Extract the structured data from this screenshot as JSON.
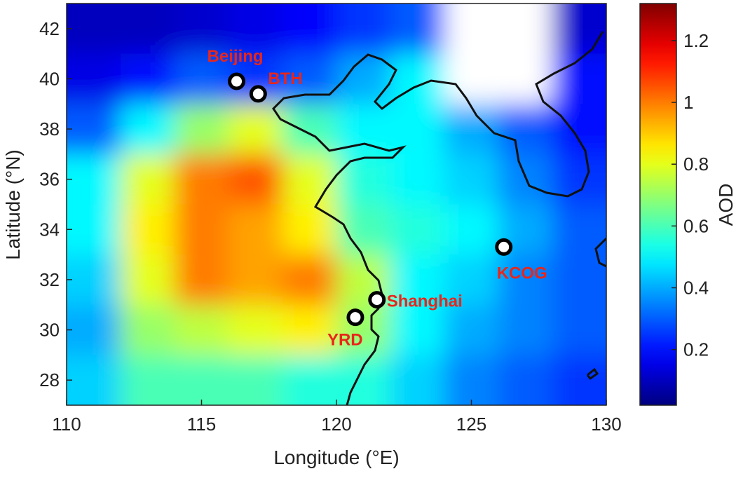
{
  "chart_data": {
    "type": "contour-map",
    "xlabel": "Longitude (°E)",
    "ylabel": "Latitude (°N)",
    "colorbar_label": "AOD",
    "xlim": [
      110,
      130
    ],
    "ylim": [
      27,
      43
    ],
    "xticks": [
      110,
      115,
      120,
      125,
      130
    ],
    "yticks": [
      28,
      30,
      32,
      34,
      36,
      38,
      40,
      42
    ],
    "clim": [
      0.02,
      1.32
    ],
    "cticks": [
      0.2,
      0.4,
      0.6,
      0.8,
      1,
      1.2
    ],
    "colormap": "jet",
    "field": {
      "lon": [
        111,
        113,
        115,
        117,
        119,
        121,
        123,
        125,
        127,
        129
      ],
      "lat": [
        42,
        40,
        38,
        36,
        34,
        32,
        30,
        28
      ],
      "values": [
        [
          0.1,
          0.1,
          0.12,
          0.15,
          0.18,
          0.25,
          0.3,
          null,
          null,
          0.12
        ],
        [
          0.15,
          0.2,
          0.3,
          0.25,
          0.3,
          0.4,
          0.5,
          null,
          null,
          0.2
        ],
        [
          0.3,
          0.5,
          0.7,
          0.8,
          0.6,
          0.5,
          0.5,
          0.4,
          0.3,
          0.2
        ],
        [
          0.5,
          0.8,
          1.0,
          1.05,
          0.8,
          0.55,
          0.5,
          0.45,
          0.35,
          0.25
        ],
        [
          0.5,
          0.85,
          1.0,
          0.95,
          0.85,
          0.6,
          0.55,
          0.5,
          0.4,
          0.3
        ],
        [
          0.45,
          0.8,
          1.0,
          0.95,
          1.0,
          0.75,
          0.5,
          0.45,
          0.35,
          0.3
        ],
        [
          0.4,
          0.7,
          0.75,
          0.8,
          0.85,
          0.7,
          0.5,
          0.4,
          0.35,
          0.3
        ],
        [
          0.45,
          0.6,
          0.6,
          0.6,
          0.55,
          0.55,
          0.45,
          0.35,
          0.3,
          0.25
        ]
      ]
    },
    "sites": [
      {
        "name": "Beijing",
        "lon": 116.3,
        "lat": 39.9
      },
      {
        "name": "BTH",
        "lon": 117.1,
        "lat": 39.4
      },
      {
        "name": "Shanghai",
        "lon": 121.5,
        "lat": 31.2
      },
      {
        "name": "YRD",
        "lon": 120.7,
        "lat": 30.5
      },
      {
        "name": "KCOG",
        "lon": 126.2,
        "lat": 33.3
      }
    ]
  }
}
